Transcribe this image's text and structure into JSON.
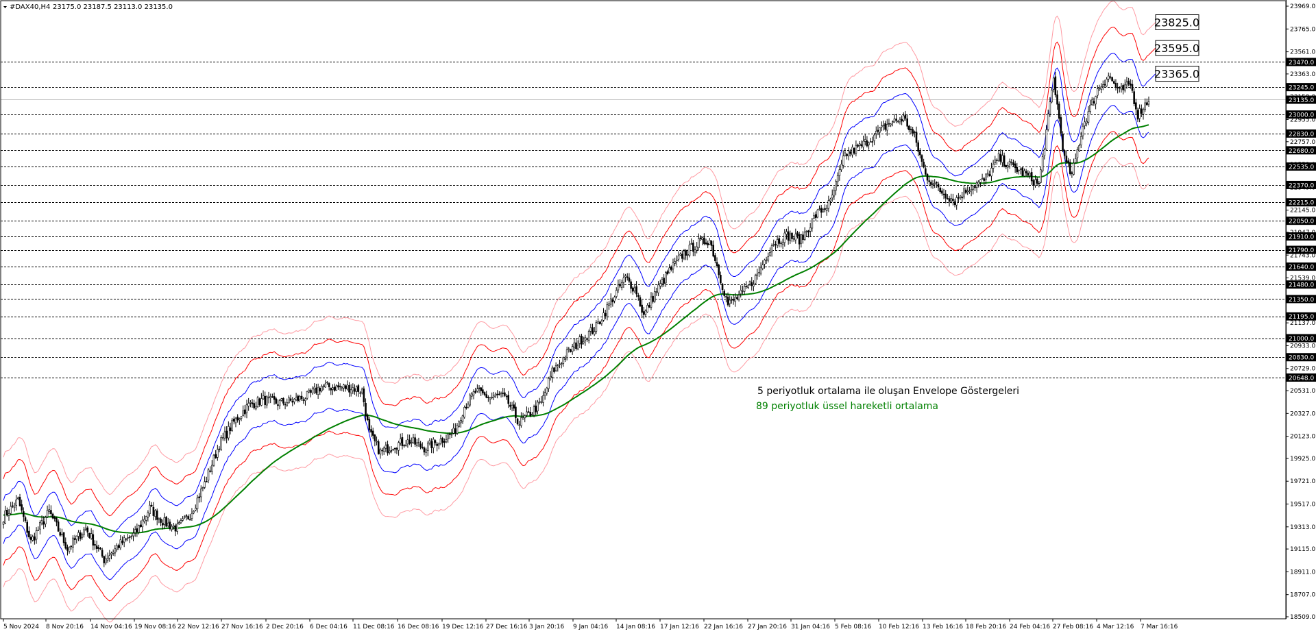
{
  "title": {
    "symbol": "#DAX40,H4",
    "ohlc": "23175.0 23187.5 23113.0 23135.0"
  },
  "annotations": [
    "5 periyotluk ortalama ile oluşan Envelope Göstergeleri",
    "89 periyotluk üssel hareketli ortalama"
  ],
  "colors": {
    "candles": "#000000",
    "envelope_inner": "#0000ff",
    "envelope_mid": "#ff0000",
    "envelope_outer": "#ff9aa2",
    "ema": "#008000",
    "level_lines": "#000000",
    "current_price": "#c0c0c0",
    "annotation_ema": "#008000"
  },
  "chart_data": {
    "type": "candlestick",
    "title": "#DAX40,H4 23175.0 23187.5 23113.0 23135.0",
    "ylim": [
      18509.0,
      23969.0
    ],
    "y_tick_labels": [
      "23969.0",
      "23765.0",
      "23561.0",
      "23363.0",
      "23159.0",
      "22955.0",
      "22757.0",
      "22553.0",
      "22349.0",
      "22145.0",
      "21947.0",
      "21743.0",
      "21539.0",
      "21341.0",
      "21137.0",
      "20933.0",
      "20729.0",
      "20531.0",
      "20327.0",
      "20123.0",
      "19925.0",
      "19721.0",
      "19517.0",
      "19313.0",
      "19115.0",
      "18911.0",
      "18707.0",
      "18509.0"
    ],
    "y_ticks": [
      23969.0,
      23765.0,
      23561.0,
      23363.0,
      23159.0,
      22955.0,
      22757.0,
      22553.0,
      22349.0,
      22145.0,
      21947.0,
      21743.0,
      21539.0,
      21341.0,
      21137.0,
      20933.0,
      20729.0,
      20531.0,
      20327.0,
      20123.0,
      19925.0,
      19721.0,
      19517.0,
      19313.0,
      19115.0,
      18911.0,
      18707.0,
      18509.0
    ],
    "x_tick_labels": [
      "5 Nov 2024",
      "8 Nov 20:16",
      "14 Nov 04:16",
      "19 Nov 08:16",
      "22 Nov 12:16",
      "27 Nov 16:16",
      "2 Dec 20:16",
      "6 Dec 04:16",
      "11 Dec 08:16",
      "16 Dec 08:16",
      "19 Dec 12:16",
      "27 Dec 16:16",
      "3 Jan 20:16",
      "9 Jan 04:16",
      "14 Jan 08:16",
      "17 Jan 12:16",
      "22 Jan 16:16",
      "27 Jan 20:16",
      "31 Jan 04:16",
      "5 Feb 08:16",
      "10 Feb 12:16",
      "13 Feb 16:16",
      "18 Feb 20:16",
      "24 Feb 04:16",
      "27 Feb 08:16",
      "4 Mar 12:16",
      "7 Mar 16:16"
    ],
    "horizontal_levels": [
      23470.0,
      23245.0,
      23000.0,
      22830.0,
      22680.0,
      22535.0,
      22370.0,
      22215.0,
      22050.0,
      21910.0,
      21790.0,
      21640.0,
      21480.0,
      21350.0,
      21195.0,
      21000.0,
      20830.0,
      20648.0
    ],
    "current_price": 23135.0,
    "envelope_labels": [
      {
        "text": "23825.0",
        "value": 23825.0
      },
      {
        "text": "23595.0",
        "value": 23595.0
      },
      {
        "text": "23365.0",
        "value": 23365.0
      }
    ],
    "price_anchors": [
      [
        0,
        19400
      ],
      [
        8,
        19550
      ],
      [
        15,
        19180
      ],
      [
        25,
        19450
      ],
      [
        35,
        19120
      ],
      [
        45,
        19300
      ],
      [
        55,
        19020
      ],
      [
        63,
        19150
      ],
      [
        72,
        19250
      ],
      [
        80,
        19480
      ],
      [
        88,
        19350
      ],
      [
        95,
        19300
      ],
      [
        102,
        19420
      ],
      [
        110,
        19700
      ],
      [
        118,
        20050
      ],
      [
        126,
        20250
      ],
      [
        134,
        20400
      ],
      [
        142,
        20450
      ],
      [
        150,
        20420
      ],
      [
        158,
        20440
      ],
      [
        166,
        20480
      ],
      [
        174,
        20570
      ],
      [
        182,
        20560
      ],
      [
        190,
        20560
      ],
      [
        196,
        20530
      ],
      [
        200,
        20150
      ],
      [
        206,
        19980
      ],
      [
        214,
        20050
      ],
      [
        222,
        20080
      ],
      [
        230,
        20020
      ],
      [
        238,
        20080
      ],
      [
        246,
        20150
      ],
      [
        252,
        20390
      ],
      [
        258,
        20520
      ],
      [
        266,
        20470
      ],
      [
        272,
        20490
      ],
      [
        276,
        20420
      ],
      [
        282,
        20240
      ],
      [
        288,
        20330
      ],
      [
        294,
        20420
      ],
      [
        300,
        20700
      ],
      [
        308,
        20860
      ],
      [
        316,
        20990
      ],
      [
        324,
        21100
      ],
      [
        332,
        21330
      ],
      [
        340,
        21540
      ],
      [
        346,
        21420
      ],
      [
        350,
        21200
      ],
      [
        356,
        21400
      ],
      [
        364,
        21600
      ],
      [
        372,
        21760
      ],
      [
        380,
        21850
      ],
      [
        386,
        21880
      ],
      [
        390,
        21650
      ],
      [
        396,
        21300
      ],
      [
        404,
        21400
      ],
      [
        412,
        21560
      ],
      [
        420,
        21840
      ],
      [
        428,
        21920
      ],
      [
        436,
        21880
      ],
      [
        444,
        22100
      ],
      [
        452,
        22210
      ],
      [
        460,
        22640
      ],
      [
        468,
        22710
      ],
      [
        476,
        22810
      ],
      [
        484,
        22920
      ],
      [
        492,
        22970
      ],
      [
        498,
        22800
      ],
      [
        504,
        22460
      ],
      [
        512,
        22320
      ],
      [
        520,
        22230
      ],
      [
        528,
        22350
      ],
      [
        536,
        22410
      ],
      [
        544,
        22610
      ],
      [
        552,
        22530
      ],
      [
        560,
        22450
      ],
      [
        566,
        22370
      ],
      [
        574,
        23320
      ],
      [
        580,
        22600
      ],
      [
        584,
        22450
      ],
      [
        590,
        22900
      ],
      [
        598,
        23220
      ],
      [
        604,
        23350
      ],
      [
        610,
        23200
      ],
      [
        616,
        23270
      ],
      [
        620,
        23000
      ],
      [
        626,
        23135
      ]
    ]
  }
}
